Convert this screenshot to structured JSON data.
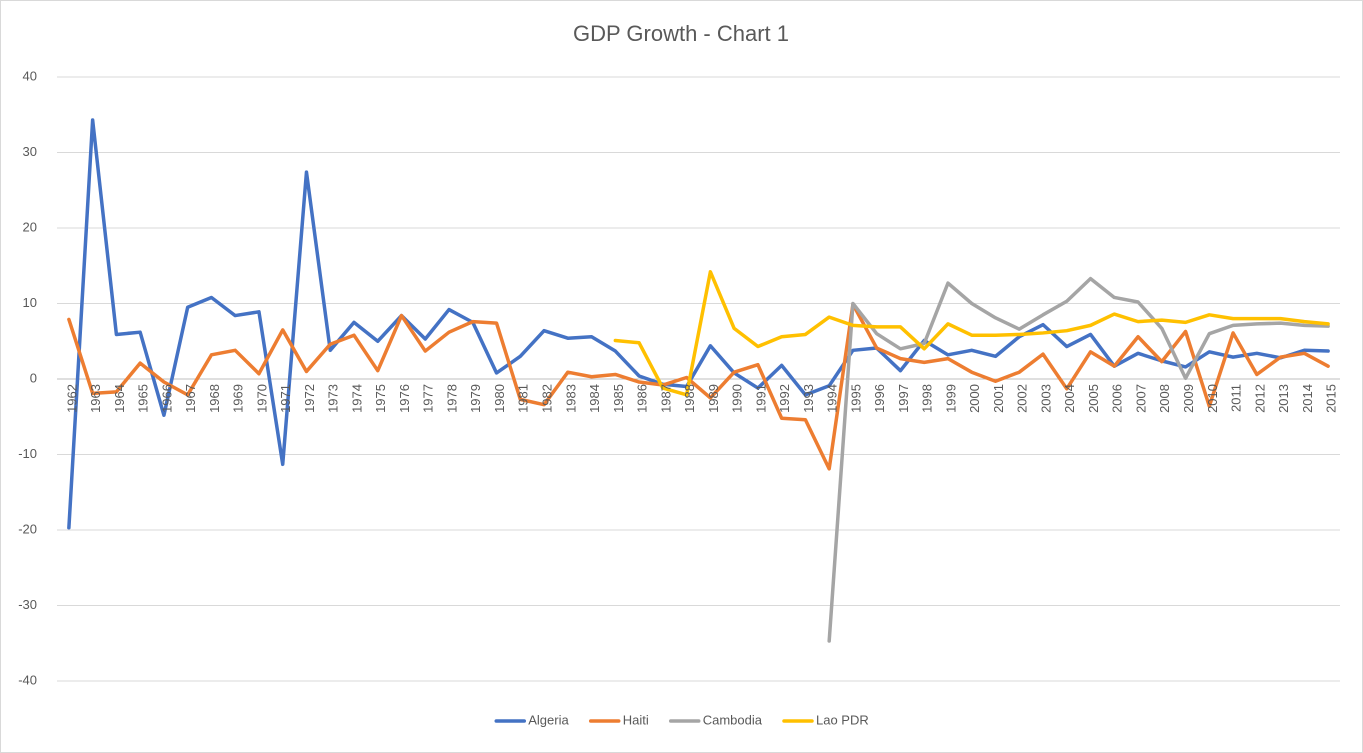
{
  "chart_data": {
    "type": "line",
    "title": "GDP Growth - Chart 1",
    "categories": [
      "1962",
      "1963",
      "1964",
      "1965",
      "1966",
      "1967",
      "1968",
      "1969",
      "1970",
      "1971",
      "1972",
      "1973",
      "1974",
      "1975",
      "1976",
      "1977",
      "1978",
      "1979",
      "1980",
      "1981",
      "1982",
      "1983",
      "1984",
      "1985",
      "1986",
      "1987",
      "1988",
      "1989",
      "1990",
      "1991",
      "1992",
      "1993",
      "1994",
      "1995",
      "1996",
      "1997",
      "1998",
      "1999",
      "2000",
      "2001",
      "2002",
      "2003",
      "2004",
      "2005",
      "2006",
      "2007",
      "2008",
      "2009",
      "2010",
      "2011",
      "2012",
      "2013",
      "2014",
      "2015"
    ],
    "series": [
      {
        "name": "Algeria",
        "color": "#4472c4",
        "values": [
          -19.7,
          34.3,
          5.9,
          6.2,
          -4.8,
          9.5,
          10.8,
          8.4,
          8.9,
          -11.3,
          27.4,
          3.8,
          7.5,
          5.0,
          8.4,
          5.3,
          9.2,
          7.5,
          0.8,
          3.0,
          6.4,
          5.4,
          5.6,
          3.7,
          0.4,
          -0.7,
          -1.0,
          4.4,
          0.8,
          -1.2,
          1.8,
          -2.1,
          -0.9,
          3.8,
          4.1,
          1.1,
          5.1,
          3.2,
          3.8,
          3.0,
          5.6,
          7.2,
          4.3,
          5.9,
          1.7,
          3.4,
          2.4,
          1.6,
          3.6,
          2.9,
          3.4,
          2.8,
          3.8,
          3.7
        ]
      },
      {
        "name": "Haiti",
        "color": "#ed7d31",
        "values": [
          7.9,
          -1.9,
          -1.7,
          2.1,
          -0.4,
          -2.1,
          3.2,
          3.8,
          0.7,
          6.5,
          1.0,
          4.6,
          5.8,
          1.1,
          8.4,
          3.7,
          6.2,
          7.6,
          7.4,
          -2.7,
          -3.4,
          0.9,
          0.3,
          0.6,
          -0.4,
          -0.8,
          0.2,
          -2.5,
          0.9,
          1.9,
          -5.2,
          -5.4,
          -11.9,
          9.9,
          4.1,
          2.7,
          2.2,
          2.7,
          0.9,
          -0.3,
          0.9,
          3.3,
          -1.3,
          3.6,
          1.7,
          5.6,
          2.3,
          6.3,
          -3.6,
          6.1,
          0.6,
          2.9,
          3.4,
          1.7
        ]
      },
      {
        "name": "Cambodia",
        "color": "#a5a5a5",
        "values": [
          null,
          null,
          null,
          null,
          null,
          null,
          null,
          null,
          null,
          null,
          null,
          null,
          null,
          null,
          null,
          null,
          null,
          null,
          null,
          null,
          null,
          null,
          null,
          null,
          null,
          null,
          null,
          null,
          null,
          null,
          null,
          null,
          -34.7,
          10.0,
          6.0,
          4.0,
          4.7,
          12.7,
          10.0,
          8.1,
          6.6,
          8.5,
          10.3,
          13.3,
          10.8,
          10.2,
          6.7,
          0.1,
          6.0,
          7.1,
          7.3,
          7.4,
          7.1,
          7.0
        ]
      },
      {
        "name": "Lao PDR",
        "color": "#ffc000",
        "values": [
          null,
          null,
          null,
          null,
          null,
          null,
          null,
          null,
          null,
          null,
          null,
          null,
          null,
          null,
          null,
          null,
          null,
          null,
          null,
          null,
          null,
          null,
          null,
          5.1,
          4.8,
          -1.2,
          -2.1,
          14.2,
          6.7,
          4.3,
          5.6,
          5.9,
          8.2,
          7.1,
          6.9,
          6.9,
          4.0,
          7.3,
          5.8,
          5.8,
          5.9,
          6.1,
          6.4,
          7.1,
          8.6,
          7.6,
          7.8,
          7.5,
          8.5,
          8.0,
          8.0,
          8.0,
          7.6,
          7.3
        ]
      }
    ],
    "ylim": [
      -40,
      40
    ],
    "yticks": [
      -40,
      -30,
      -20,
      -10,
      0,
      10,
      20,
      30,
      40
    ],
    "grid": true,
    "legend": "bottom"
  }
}
